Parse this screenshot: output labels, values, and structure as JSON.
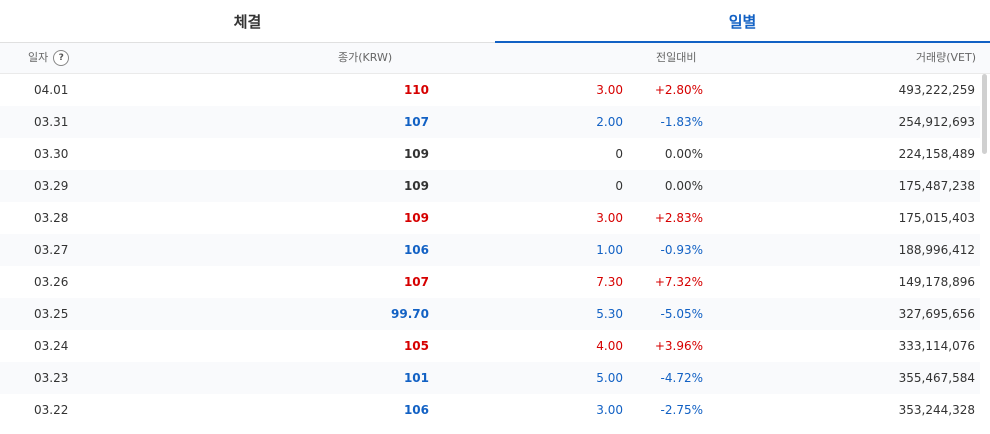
{
  "tabs": [
    {
      "label": "체결",
      "active": false
    },
    {
      "label": "일별",
      "active": true
    }
  ],
  "columns": {
    "date": "일자",
    "help": "?",
    "close": "종가(KRW)",
    "change": "전일대비",
    "volume": "거래량(VET)"
  },
  "rows": [
    {
      "date": "04.01",
      "close": "110",
      "diff": "3.00",
      "pct": "+2.80%",
      "vol": "493,222,259",
      "dir": "up"
    },
    {
      "date": "03.31",
      "close": "107",
      "diff": "2.00",
      "pct": "-1.83%",
      "vol": "254,912,693",
      "dir": "down"
    },
    {
      "date": "03.30",
      "close": "109",
      "diff": "0",
      "pct": "0.00%",
      "vol": "224,158,489",
      "dir": "flat"
    },
    {
      "date": "03.29",
      "close": "109",
      "diff": "0",
      "pct": "0.00%",
      "vol": "175,487,238",
      "dir": "flat"
    },
    {
      "date": "03.28",
      "close": "109",
      "diff": "3.00",
      "pct": "+2.83%",
      "vol": "175,015,403",
      "dir": "up"
    },
    {
      "date": "03.27",
      "close": "106",
      "diff": "1.00",
      "pct": "-0.93%",
      "vol": "188,996,412",
      "dir": "down"
    },
    {
      "date": "03.26",
      "close": "107",
      "diff": "7.30",
      "pct": "+7.32%",
      "vol": "149,178,896",
      "dir": "up"
    },
    {
      "date": "03.25",
      "close": "99.70",
      "diff": "5.30",
      "pct": "-5.05%",
      "vol": "327,695,656",
      "dir": "down"
    },
    {
      "date": "03.24",
      "close": "105",
      "diff": "4.00",
      "pct": "+3.96%",
      "vol": "333,114,076",
      "dir": "up"
    },
    {
      "date": "03.23",
      "close": "101",
      "diff": "5.00",
      "pct": "-4.72%",
      "vol": "355,467,584",
      "dir": "down"
    },
    {
      "date": "03.22",
      "close": "106",
      "diff": "3.00",
      "pct": "-2.75%",
      "vol": "353,244,328",
      "dir": "down"
    }
  ],
  "colors": {
    "up": "#d60000",
    "down": "#1261c4",
    "flat": "#333333",
    "accent": "#1261c4"
  }
}
